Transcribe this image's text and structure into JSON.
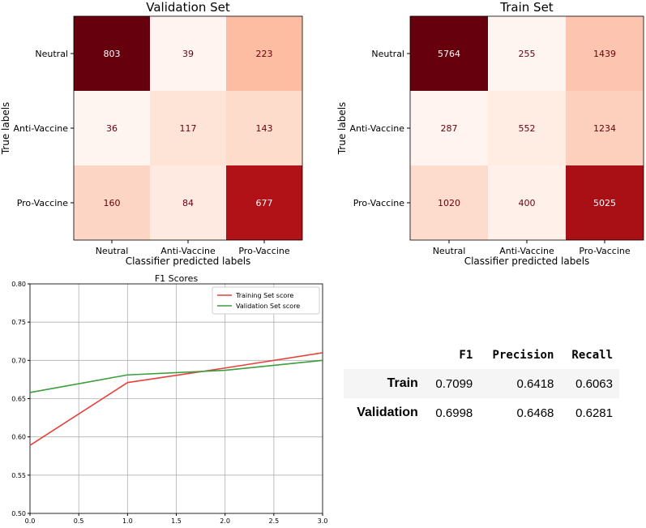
{
  "chart_data": [
    {
      "type": "heatmap",
      "title": "Validation Set",
      "xlabel": "Classifier predicted labels",
      "ylabel": "True labels",
      "x_categories": [
        "Neutral",
        "Anti-Vaccine",
        "Pro-Vaccine"
      ],
      "y_categories": [
        "Neutral",
        "Anti-Vaccine",
        "Pro-Vaccine"
      ],
      "values": [
        [
          803,
          39,
          223
        ],
        [
          36,
          117,
          143
        ],
        [
          160,
          84,
          677
        ]
      ],
      "colormap": "Reds"
    },
    {
      "type": "heatmap",
      "title": "Train Set",
      "xlabel": "Classifier predicted labels",
      "ylabel": "True labels",
      "x_categories": [
        "Neutral",
        "Anti-Vaccine",
        "Pro-Vaccine"
      ],
      "y_categories": [
        "Neutral",
        "Anti-Vaccine",
        "Pro-Vaccine"
      ],
      "values": [
        [
          5764,
          255,
          1439
        ],
        [
          287,
          552,
          1234
        ],
        [
          1020,
          400,
          5025
        ]
      ],
      "colormap": "Reds"
    },
    {
      "type": "line",
      "title": "F1 Scores",
      "x": [
        0,
        1,
        2,
        3
      ],
      "xlim": [
        0,
        3
      ],
      "ylim": [
        0.5,
        0.8
      ],
      "x_ticks": [
        "0.0",
        "0.5",
        "1.0",
        "1.5",
        "2.0",
        "2.5",
        "3.0"
      ],
      "y_ticks": [
        "0.50",
        "0.55",
        "0.60",
        "0.65",
        "0.70",
        "0.75",
        "0.80"
      ],
      "grid": true,
      "legend_position": "top-right",
      "series": [
        {
          "name": "Training Set score",
          "color": "#e8413c",
          "values": [
            0.589,
            0.671,
            0.69,
            0.71
          ]
        },
        {
          "name": "Validation Set score",
          "color": "#3c9e3c",
          "values": [
            0.658,
            0.681,
            0.687,
            0.7
          ]
        }
      ]
    },
    {
      "type": "table",
      "columns": [
        "",
        "F1",
        "Precision",
        "Recall"
      ],
      "rows": [
        [
          "Train",
          "0.7099",
          "0.6418",
          "0.6063"
        ],
        [
          "Validation",
          "0.6998",
          "0.6468",
          "0.6281"
        ]
      ]
    }
  ]
}
